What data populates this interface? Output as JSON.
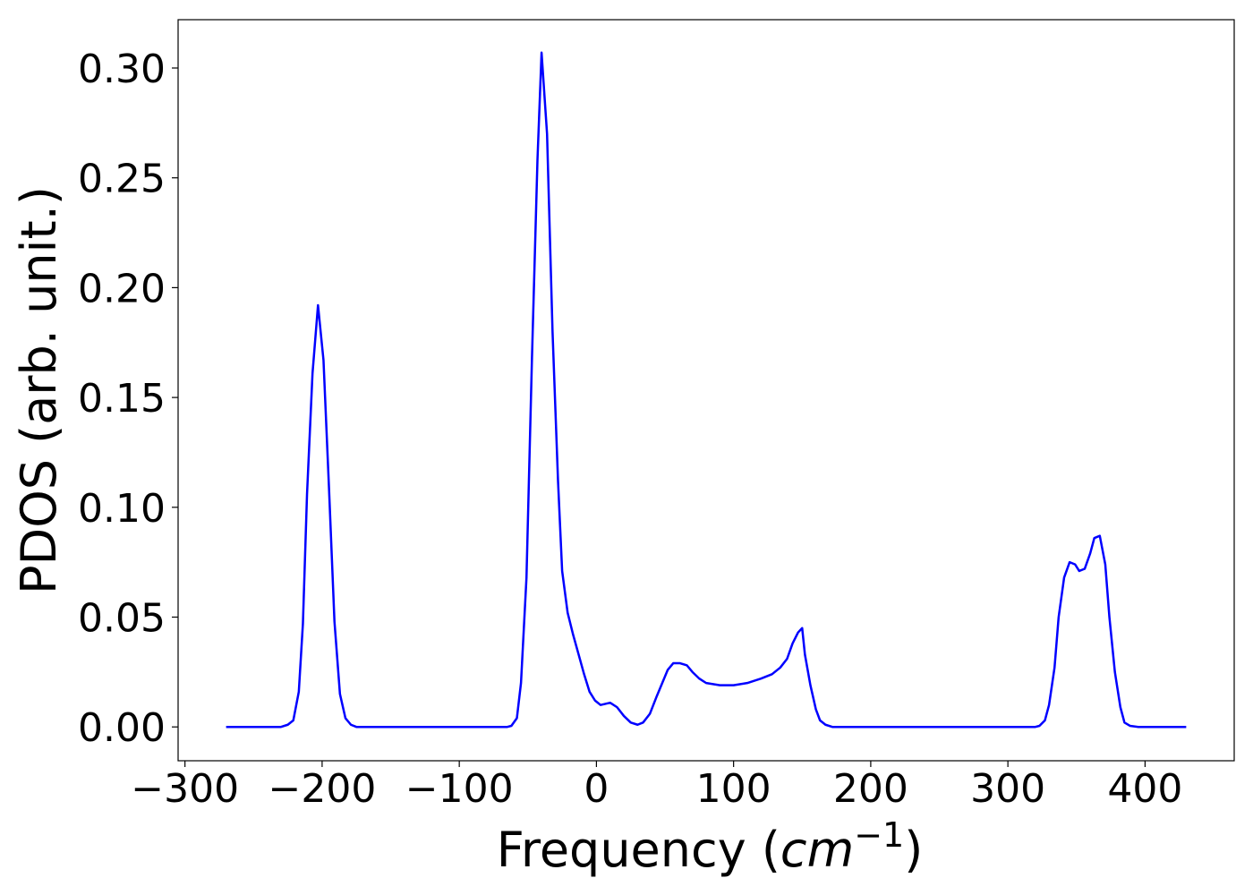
{
  "chart_data": {
    "type": "line",
    "xlabel": [
      "Frequency (",
      "cm",
      "−1",
      ")"
    ],
    "ylabel": "PDOS (arb. unit.)",
    "x": [
      -270,
      -230,
      -225,
      -221,
      -217,
      -214,
      -211,
      -207,
      -203,
      -199,
      -195,
      -191,
      -187,
      -183,
      -179,
      -175,
      -65,
      -62,
      -58,
      -55,
      -51,
      -47,
      -43,
      -40,
      -36,
      -32,
      -28,
      -25,
      -21,
      -17,
      -13,
      -9,
      -5,
      -1,
      3,
      10,
      15,
      20,
      25,
      30,
      34,
      39,
      44,
      48,
      52,
      56,
      61,
      66,
      70,
      75,
      80,
      90,
      100,
      110,
      120,
      128,
      134,
      139,
      143,
      147,
      150,
      152,
      156,
      160,
      163,
      167,
      172,
      320,
      323,
      327,
      330,
      334,
      337,
      341,
      345,
      349,
      352,
      356,
      360,
      363,
      367,
      371,
      374,
      378,
      382,
      385,
      389,
      395,
      430
    ],
    "series": [
      {
        "color": "#0000ff",
        "values": [
          0,
          0,
          0.001,
          0.003,
          0.016,
          0.047,
          0.106,
          0.161,
          0.192,
          0.167,
          0.109,
          0.048,
          0.015,
          0.004,
          0.001,
          0,
          0,
          0.0005,
          0.004,
          0.02,
          0.068,
          0.168,
          0.258,
          0.307,
          0.27,
          0.18,
          0.112,
          0.071,
          0.052,
          0.042,
          0.033,
          0.024,
          0.016,
          0.012,
          0.01,
          0.011,
          0.009,
          0.005,
          0.002,
          0.001,
          0.002,
          0.006,
          0.014,
          0.02,
          0.026,
          0.029,
          0.029,
          0.028,
          0.025,
          0.022,
          0.02,
          0.019,
          0.019,
          0.02,
          0.022,
          0.024,
          0.027,
          0.031,
          0.038,
          0.043,
          0.045,
          0.033,
          0.019,
          0.008,
          0.003,
          0.001,
          0,
          0,
          0.0005,
          0.003,
          0.01,
          0.027,
          0.05,
          0.068,
          0.075,
          0.074,
          0.071,
          0.072,
          0.079,
          0.086,
          0.087,
          0.074,
          0.05,
          0.025,
          0.009,
          0.002,
          0.0005,
          0,
          0
        ]
      }
    ],
    "xlim": [
      -305,
      465
    ],
    "ylim": [
      -0.0154,
      0.322
    ],
    "xticks": [
      {
        "value": -300,
        "label": "−300"
      },
      {
        "value": -200,
        "label": "−200"
      },
      {
        "value": -100,
        "label": "−100"
      },
      0,
      100,
      200,
      300,
      400
    ],
    "yticks": [
      {
        "value": 0,
        "label": "0.00"
      },
      {
        "value": 0.05,
        "label": "0.05"
      },
      {
        "value": 0.1,
        "label": "0.10"
      },
      {
        "value": 0.15,
        "label": "0.15"
      },
      {
        "value": 0.2,
        "label": "0.20"
      },
      {
        "value": 0.25,
        "label": "0.25"
      },
      {
        "value": 0.3,
        "label": "0.30"
      }
    ]
  }
}
